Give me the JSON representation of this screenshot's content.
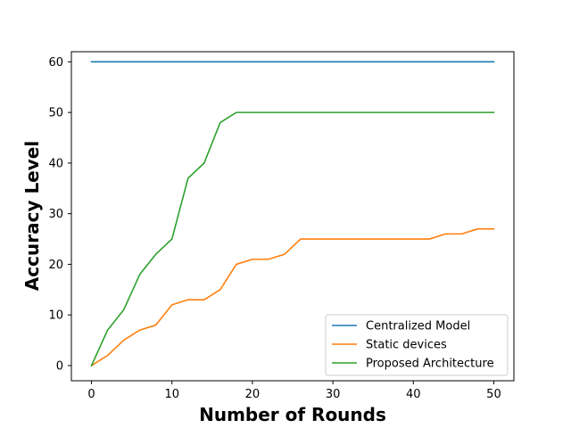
{
  "chart_data": {
    "type": "line",
    "title": "",
    "xlabel": "Number of Rounds",
    "ylabel": "Accuracy Level",
    "xlim": [
      -2.5,
      52.5
    ],
    "ylim": [
      -3,
      62
    ],
    "xticks": [
      0,
      10,
      20,
      30,
      40,
      50
    ],
    "yticks": [
      0,
      10,
      20,
      30,
      40,
      50,
      60
    ],
    "grid": false,
    "legend_position": "lower-right",
    "series": [
      {
        "name": "Centralized Model",
        "color": "#1f77b4",
        "x": [
          0,
          50
        ],
        "y": [
          60,
          60
        ]
      },
      {
        "name": "Static devices",
        "color": "#ff7f0e",
        "x": [
          0,
          2,
          4,
          6,
          8,
          10,
          12,
          14,
          16,
          18,
          20,
          22,
          24,
          26,
          28,
          30,
          32,
          34,
          36,
          38,
          40,
          42,
          44,
          46,
          48,
          50
        ],
        "y": [
          0,
          2,
          5,
          7,
          8,
          12,
          13,
          13,
          15,
          20,
          21,
          21,
          22,
          25,
          25,
          25,
          25,
          25,
          25,
          25,
          25,
          25,
          26,
          26,
          27,
          27
        ]
      },
      {
        "name": "Proposed Architecture",
        "color": "#2ca02c",
        "x": [
          0,
          2,
          4,
          6,
          8,
          10,
          12,
          14,
          16,
          18,
          20,
          50
        ],
        "y": [
          0,
          7,
          11,
          18,
          22,
          25,
          37,
          40,
          48,
          50,
          50,
          50
        ]
      }
    ]
  }
}
